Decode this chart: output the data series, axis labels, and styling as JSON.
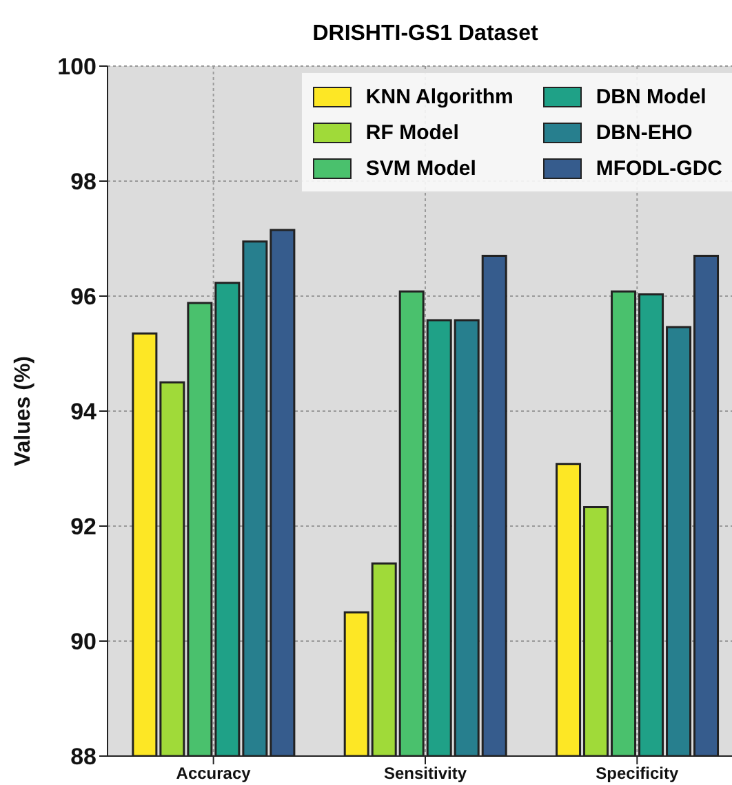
{
  "chart_data": {
    "type": "bar",
    "title": "DRISHTI-GS1 Dataset",
    "ylabel": "Values (%)",
    "categories": [
      "Accuracy",
      "Sensitivity",
      "Specificity"
    ],
    "series": [
      {
        "name": "KNN Algorithm",
        "color": "#fde725",
        "values": [
          95.35,
          90.5,
          93.08
        ]
      },
      {
        "name": "RF Model",
        "color": "#a0da39",
        "values": [
          94.5,
          91.35,
          92.33
        ]
      },
      {
        "name": "SVM Model",
        "color": "#4ac16d",
        "values": [
          95.88,
          96.08,
          96.08
        ]
      },
      {
        "name": "DBN Model",
        "color": "#1fa187",
        "values": [
          96.23,
          95.58,
          96.03
        ]
      },
      {
        "name": "DBN-EHO",
        "color": "#277f8e",
        "values": [
          96.95,
          95.58,
          95.46
        ]
      },
      {
        "name": "MFODL-GDC",
        "color": "#365c8d",
        "values": [
          97.15,
          96.7,
          96.7
        ]
      }
    ],
    "ylim": [
      88,
      100
    ],
    "yticks": [
      88,
      90,
      92,
      94,
      96,
      98,
      100
    ],
    "grid": true,
    "legend": "top right"
  }
}
